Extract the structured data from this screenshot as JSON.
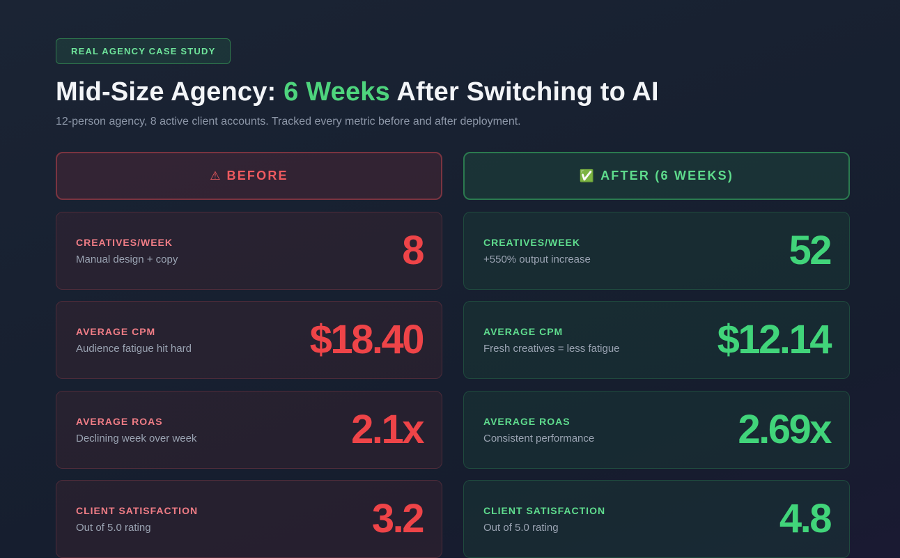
{
  "badge": "REAL AGENCY CASE STUDY",
  "title": {
    "prefix": "Mid-Size Agency: ",
    "highlight": "6 Weeks",
    "suffix": " After Switching to AI"
  },
  "subtitle": "12-person agency, 8 active client accounts. Tracked every metric before and after deployment.",
  "before": {
    "icon": "warning-icon",
    "icon_glyph": "⚠",
    "label": "BEFORE",
    "metrics": [
      {
        "label": "CREATIVES/WEEK",
        "desc": "Manual design + copy",
        "value": "8"
      },
      {
        "label": "AVERAGE CPM",
        "desc": "Audience fatigue hit hard",
        "value": "$18.40"
      },
      {
        "label": "AVERAGE ROAS",
        "desc": "Declining week over week",
        "value": "2.1x"
      },
      {
        "label": "CLIENT SATISFACTION",
        "desc": "Out of 5.0 rating",
        "value": "3.2"
      }
    ]
  },
  "after": {
    "icon": "checkmark-icon",
    "icon_glyph": "✅",
    "label": "AFTER (6 WEEKS)",
    "metrics": [
      {
        "label": "CREATIVES/WEEK",
        "desc": "+550% output increase",
        "value": "52"
      },
      {
        "label": "AVERAGE CPM",
        "desc": "Fresh creatives = less fatigue",
        "value": "$12.14"
      },
      {
        "label": "AVERAGE ROAS",
        "desc": "Consistent performance",
        "value": "2.69x"
      },
      {
        "label": "CLIENT SATISFACTION",
        "desc": "Out of 5.0 rating",
        "value": "4.8"
      }
    ]
  },
  "colors": {
    "accent_green": "#4ed47d",
    "accent_red": "#ee4448",
    "background": "#172030"
  }
}
